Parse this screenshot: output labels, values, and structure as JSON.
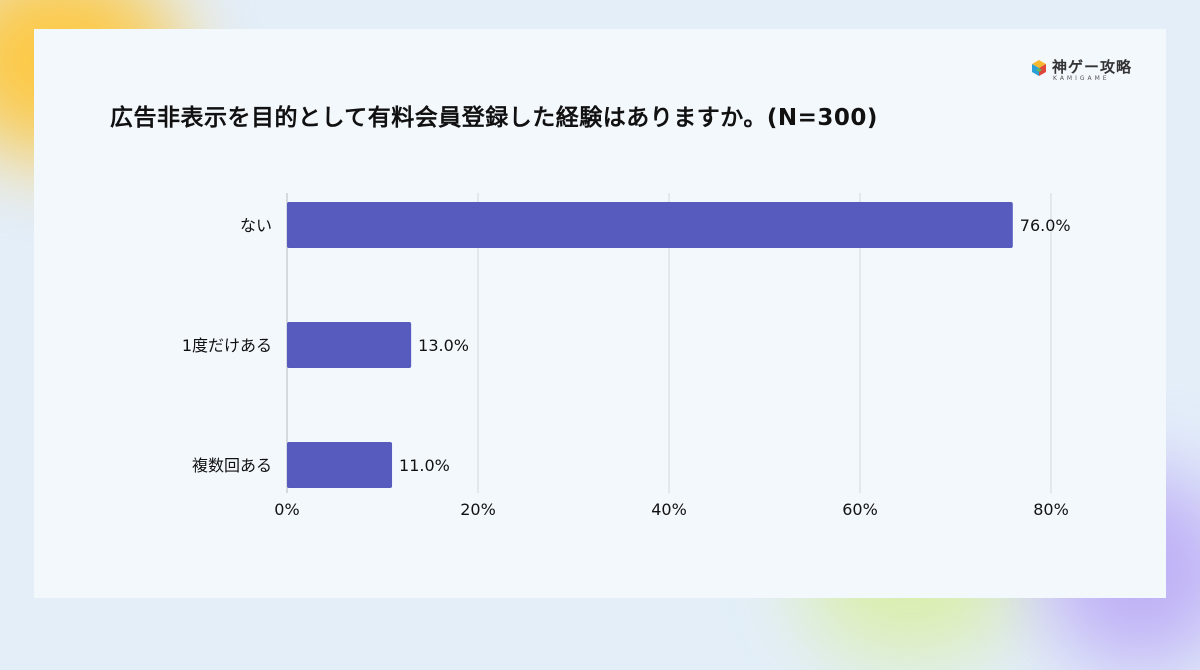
{
  "header": {
    "title": "広告非表示を目的として有料会員登録した経験はありますか。(N=300)"
  },
  "logo": {
    "text": "神ゲー攻略",
    "sub": "KAMIGAME"
  },
  "chart_data": {
    "type": "bar",
    "orientation": "horizontal",
    "title": "広告非表示を目的として有料会員登録した経験はありますか。(N=300)",
    "categories": [
      "ない",
      "1度だけある",
      "複数回ある"
    ],
    "values": [
      76.0,
      13.0,
      11.0
    ],
    "value_labels": [
      "76.0%",
      "13.0%",
      "11.0%"
    ],
    "xlim": [
      0,
      80
    ],
    "x_ticks": [
      0,
      20,
      40,
      60,
      80
    ],
    "x_tick_labels": [
      "0%",
      "20%",
      "40%",
      "60%",
      "80%"
    ],
    "grid": true,
    "bar_color": "#575bbd",
    "xlabel": "",
    "ylabel": ""
  }
}
